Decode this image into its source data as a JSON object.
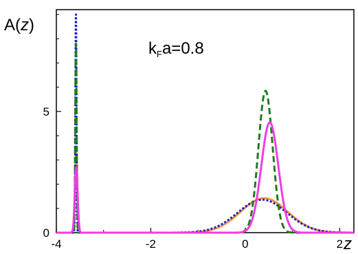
{
  "chart_data": {
    "type": "line",
    "title": "",
    "annotation": {
      "main": "k",
      "sub": "F",
      "rest": "a=0.8"
    },
    "ylabel": {
      "prefix": "A(",
      "var": "z",
      "suffix": ")"
    },
    "xlabel": "z",
    "xlim": [
      -4.0,
      2.3
    ],
    "ylim": [
      0,
      9.2
    ],
    "xticks": [
      {
        "value": -4,
        "label": "-4"
      },
      {
        "value": -2,
        "label": "-2"
      },
      {
        "value": 0,
        "label": "0"
      },
      {
        "value": 2,
        "label": "2"
      }
    ],
    "yticks": [
      {
        "value": 0,
        "label": "0"
      },
      {
        "value": 5,
        "label": "5"
      }
    ],
    "grid": false,
    "legend": "none",
    "series": [
      {
        "color": "#f4973a",
        "style": "solid",
        "peaks": [
          {
            "center": -3.58,
            "height": 3.3,
            "width": 0.025
          },
          {
            "center": 0.4,
            "height": 1.42,
            "width": 0.5
          }
        ]
      },
      {
        "color": "#1a22c8",
        "style": "dotted",
        "peaks": [
          {
            "center": -3.585,
            "height": 9.0,
            "width": 0.012
          },
          {
            "center": 0.36,
            "height": 1.36,
            "width": 0.52
          }
        ]
      },
      {
        "color": "#1f7a1f",
        "style": "dashed",
        "peaks": [
          {
            "center": -3.585,
            "height": 7.8,
            "width": 0.014
          },
          {
            "center": 0.43,
            "height": 5.85,
            "width": 0.15
          }
        ]
      },
      {
        "color": "#f03ce6",
        "style": "solid",
        "peaks": [
          {
            "center": -3.58,
            "height": 2.7,
            "width": 0.03
          },
          {
            "center": 0.52,
            "height": 4.55,
            "width": 0.18
          }
        ]
      }
    ]
  }
}
